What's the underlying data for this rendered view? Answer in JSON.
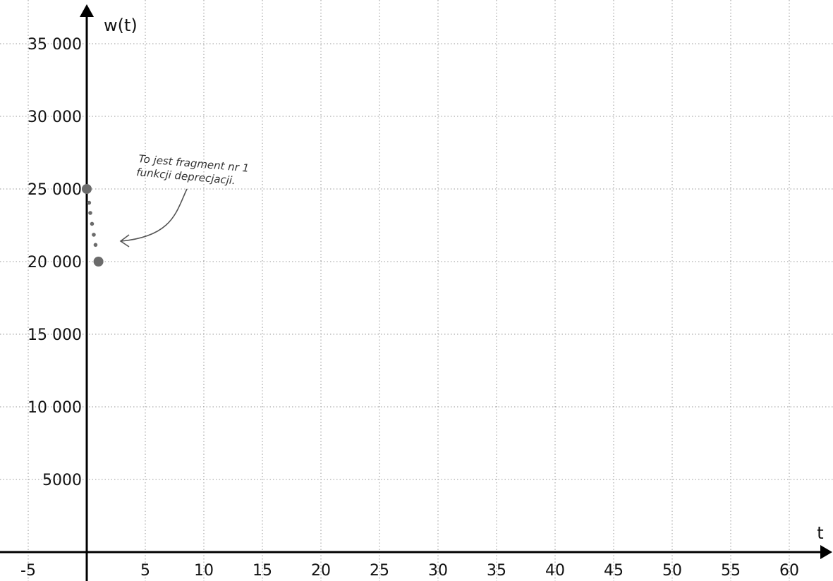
{
  "chart_data": {
    "type": "scatter",
    "xlabel": "t",
    "ylabel": "w(t)",
    "xlim": [
      -5,
      62
    ],
    "ylim": [
      0,
      36000
    ],
    "x_ticks": [
      -5,
      5,
      10,
      15,
      20,
      25,
      30,
      35,
      40,
      45,
      50,
      55,
      60
    ],
    "x_tick_labels": [
      "-5",
      "5",
      "10",
      "15",
      "20",
      "25",
      "30",
      "35",
      "40",
      "45",
      "50",
      "55",
      "60"
    ],
    "y_ticks": [
      5000,
      10000,
      15000,
      20000,
      25000,
      30000,
      35000
    ],
    "y_tick_labels": [
      "5000",
      "10 000",
      "15 000",
      "20 000",
      "25 000",
      "30 000",
      "35 000"
    ],
    "grid": true,
    "grid_style": "dotted",
    "series": [
      {
        "points": [
          {
            "x": 0,
            "y": 25000
          },
          {
            "x": 0.2,
            "y": 24050
          },
          {
            "x": 0.3,
            "y": 23350
          },
          {
            "x": 0.45,
            "y": 22600
          },
          {
            "x": 0.6,
            "y": 21850
          },
          {
            "x": 0.75,
            "y": 21150
          },
          {
            "x": 1,
            "y": 20000
          }
        ]
      }
    ],
    "annotation": {
      "lines": [
        "To jest fragment nr 1",
        "funkcji deprecjacji."
      ]
    },
    "colors": {
      "axis": "#000000",
      "grid": "#9a9a9a",
      "points": "#6b6b6b",
      "arrow": "#555555"
    }
  }
}
